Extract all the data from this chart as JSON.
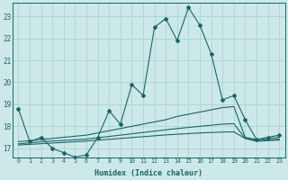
{
  "xlabel": "Humidex (Indice chaleur)",
  "x_values": [
    0,
    1,
    2,
    3,
    4,
    5,
    6,
    7,
    8,
    9,
    10,
    11,
    12,
    13,
    14,
    15,
    16,
    17,
    18,
    19,
    20,
    21,
    22,
    23
  ],
  "line1": [
    18.8,
    17.3,
    17.5,
    17.0,
    16.8,
    16.6,
    16.7,
    17.5,
    18.7,
    18.1,
    19.9,
    19.4,
    22.5,
    22.9,
    21.9,
    23.4,
    22.6,
    21.3,
    19.2,
    19.4,
    18.3,
    17.4,
    17.5,
    17.6
  ],
  "smooth1": [
    17.3,
    17.35,
    17.4,
    17.45,
    17.5,
    17.55,
    17.6,
    17.7,
    17.8,
    17.9,
    18.0,
    18.1,
    18.2,
    18.3,
    18.45,
    18.55,
    18.65,
    18.75,
    18.85,
    18.9,
    17.5,
    17.4,
    17.45,
    17.5
  ],
  "smooth2": [
    17.2,
    17.25,
    17.3,
    17.33,
    17.36,
    17.39,
    17.42,
    17.48,
    17.54,
    17.6,
    17.66,
    17.72,
    17.78,
    17.84,
    17.9,
    17.95,
    18.0,
    18.05,
    18.1,
    18.12,
    17.45,
    17.35,
    17.38,
    17.42
  ],
  "smooth3": [
    17.15,
    17.18,
    17.21,
    17.24,
    17.27,
    17.3,
    17.33,
    17.37,
    17.41,
    17.45,
    17.49,
    17.53,
    17.57,
    17.61,
    17.64,
    17.67,
    17.7,
    17.72,
    17.74,
    17.75,
    17.45,
    17.32,
    17.35,
    17.38
  ],
  "bg_color": "#cce8e8",
  "line_color": "#1a6666",
  "grid_color": "#aad4d4",
  "ylim": [
    16.6,
    23.6
  ],
  "yticks": [
    17,
    18,
    19,
    20,
    21,
    22,
    23
  ],
  "xlim": [
    -0.5,
    23.5
  ]
}
